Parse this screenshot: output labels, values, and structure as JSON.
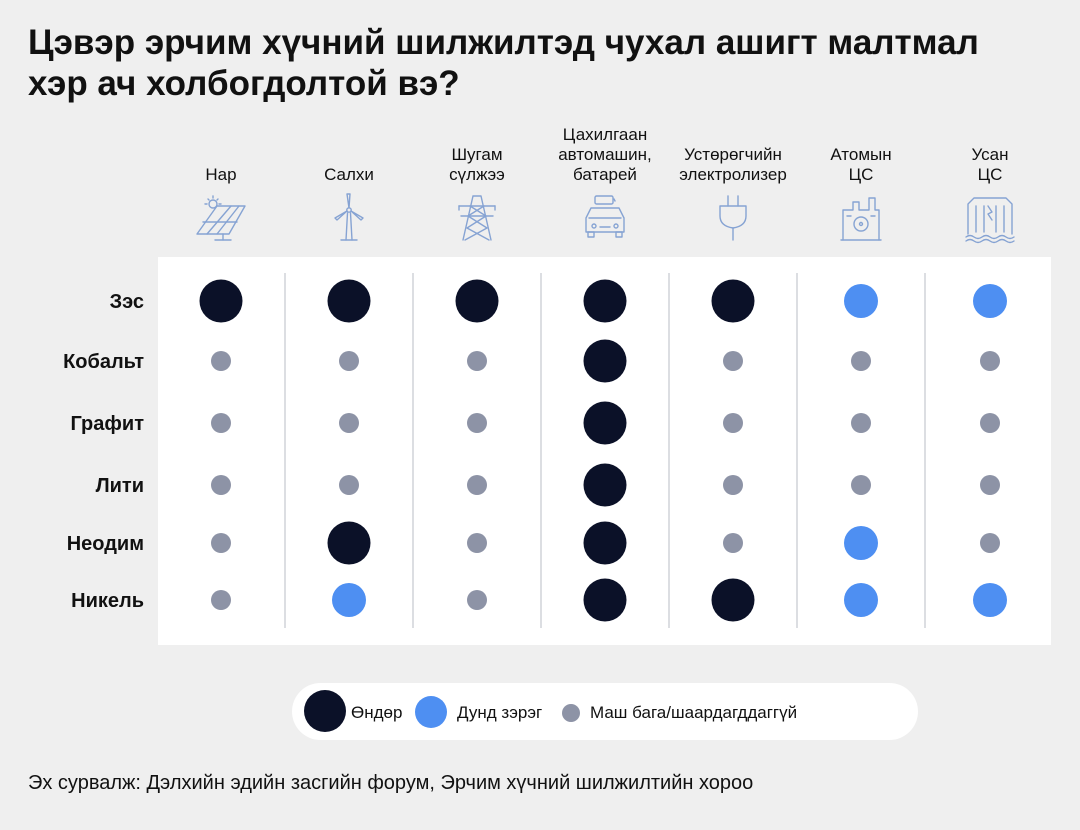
{
  "title_lines": [
    "Цэвэр эрчим хүчний шилжилтэд чухал ашигт малтмал",
    "хэр ач холбогдолтой вэ?"
  ],
  "chart_data": {
    "type": "table",
    "columns": [
      {
        "label": [
          "Нар"
        ],
        "icon": "solar-panel-icon"
      },
      {
        "label": [
          "Салхи"
        ],
        "icon": "wind-turbine-icon"
      },
      {
        "label": [
          "Шугам",
          "сүлжээ"
        ],
        "icon": "power-tower-icon"
      },
      {
        "label": [
          "Цахилгаан",
          "автомашин,",
          "батарей"
        ],
        "icon": "electric-car-icon"
      },
      {
        "label": [
          "Устөрөгчийн",
          "электролизер"
        ],
        "icon": "plug-icon"
      },
      {
        "label": [
          "Атомын",
          "ЦС"
        ],
        "icon": "nuclear-plant-icon"
      },
      {
        "label": [
          "Усан",
          "ЦС"
        ],
        "icon": "hydro-dam-icon"
      }
    ],
    "rows": [
      "Зэс",
      "Кобальт",
      "Графит",
      "Лити",
      "Неодим",
      "Никель"
    ],
    "levels": [
      [
        "high",
        "high",
        "high",
        "high",
        "high",
        "medium",
        "medium"
      ],
      [
        "low",
        "low",
        "low",
        "high",
        "low",
        "low",
        "low"
      ],
      [
        "low",
        "low",
        "low",
        "high",
        "low",
        "low",
        "low"
      ],
      [
        "low",
        "low",
        "low",
        "high",
        "low",
        "low",
        "low"
      ],
      [
        "low",
        "high",
        "low",
        "high",
        "low",
        "medium",
        "low"
      ],
      [
        "low",
        "medium",
        "low",
        "high",
        "high",
        "medium",
        "medium"
      ]
    ],
    "legend": [
      {
        "key": "high",
        "label": "Өндөр",
        "color": "#0b1128"
      },
      {
        "key": "medium",
        "label": "Дунд зэрэг",
        "color": "#4e8ff2"
      },
      {
        "key": "low",
        "label": "Маш бага/шаардагддаггүй",
        "color": "#8d93a6"
      }
    ]
  },
  "colors": {
    "background": "#efefef",
    "panel": "#ffffff",
    "icon": "#86a3d3",
    "divider": "#c9ccd3"
  },
  "source": "Эх сурвалж: Дэлхийн эдийн засгийн форум, Эрчим хүчний шилжилтийн хороо"
}
